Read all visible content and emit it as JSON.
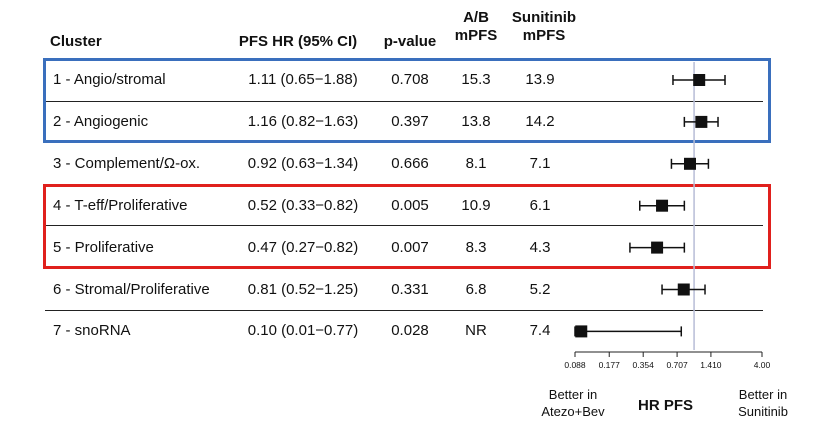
{
  "header": {
    "cluster": "Cluster",
    "hr": "PFS HR (95% CI)",
    "pvalue": "p-value",
    "ab_line1": "A/B",
    "ab_line2": "mPFS",
    "sun_line1": "Sunitinib",
    "sun_line2": "mPFS"
  },
  "rows": [
    {
      "cluster": "1 - Angio/stromal",
      "hr_text": "1.11 (0.65−1.88)",
      "p": "0.708",
      "ab": "15.3",
      "sun": "13.9"
    },
    {
      "cluster": "2 - Angiogenic",
      "hr_text": "1.16 (0.82−1.63)",
      "p": "0.397",
      "ab": "13.8",
      "sun": "14.2"
    },
    {
      "cluster": "3 - Complement/Ω-ox.",
      "hr_text": "0.92 (0.63−1.34)",
      "p": "0.666",
      "ab": "8.1",
      "sun": "7.1"
    },
    {
      "cluster": "4 - T-eff/Proliferative",
      "hr_text": "0.52 (0.33−0.82)",
      "p": "0.005",
      "ab": "10.9",
      "sun": "6.1"
    },
    {
      "cluster": "5 - Proliferative",
      "hr_text": "0.47 (0.27−0.82)",
      "p": "0.007",
      "ab": "8.3",
      "sun": "4.3"
    },
    {
      "cluster": "6 - Stromal/Proliferative",
      "hr_text": "0.81 (0.52−1.25)",
      "p": "0.331",
      "ab": "6.8",
      "sun": "5.2"
    },
    {
      "cluster": "7 - snoRNA",
      "hr_text": "0.10 (0.01−0.77)",
      "p": "0.028",
      "ab": "NR",
      "sun": "7.4"
    }
  ],
  "chart_data": {
    "type": "forest",
    "scale": "log2",
    "xlabel": "HR PFS",
    "xlim": [
      0.088,
      4.0
    ],
    "ticks": [
      "0.088",
      "0.177",
      "0.354",
      "0.707",
      "1.410",
      "4.00"
    ],
    "tick_values": [
      0.088,
      0.177,
      0.354,
      0.707,
      1.41,
      4.0
    ],
    "reference_line": 1.0,
    "left_annotation": [
      "Better in",
      "Atezo+Bev"
    ],
    "right_annotation": [
      "Better in",
      "Sunitinib"
    ],
    "series": [
      {
        "cluster": "1 - Angio/stromal",
        "hr": 1.11,
        "lo": 0.65,
        "hi": 1.88
      },
      {
        "cluster": "2 - Angiogenic",
        "hr": 1.16,
        "lo": 0.82,
        "hi": 1.63
      },
      {
        "cluster": "3 - Complement/Ω-ox.",
        "hr": 0.92,
        "lo": 0.63,
        "hi": 1.34
      },
      {
        "cluster": "4 - T-eff/Proliferative",
        "hr": 0.52,
        "lo": 0.33,
        "hi": 0.82
      },
      {
        "cluster": "5 - Proliferative",
        "hr": 0.47,
        "lo": 0.27,
        "hi": 0.82
      },
      {
        "cluster": "6 - Stromal/Proliferative",
        "hr": 0.81,
        "lo": 0.52,
        "hi": 1.25
      },
      {
        "cluster": "7 - snoRNA",
        "hr": 0.1,
        "lo": 0.01,
        "hi": 0.77
      }
    ],
    "highlight_groups": [
      {
        "rows": [
          "1 - Angio/stromal",
          "2 - Angiogenic"
        ],
        "color": "#3a6fbd"
      },
      {
        "rows": [
          "4 - T-eff/Proliferative",
          "5 - Proliferative"
        ],
        "color": "#e0201d"
      }
    ]
  }
}
